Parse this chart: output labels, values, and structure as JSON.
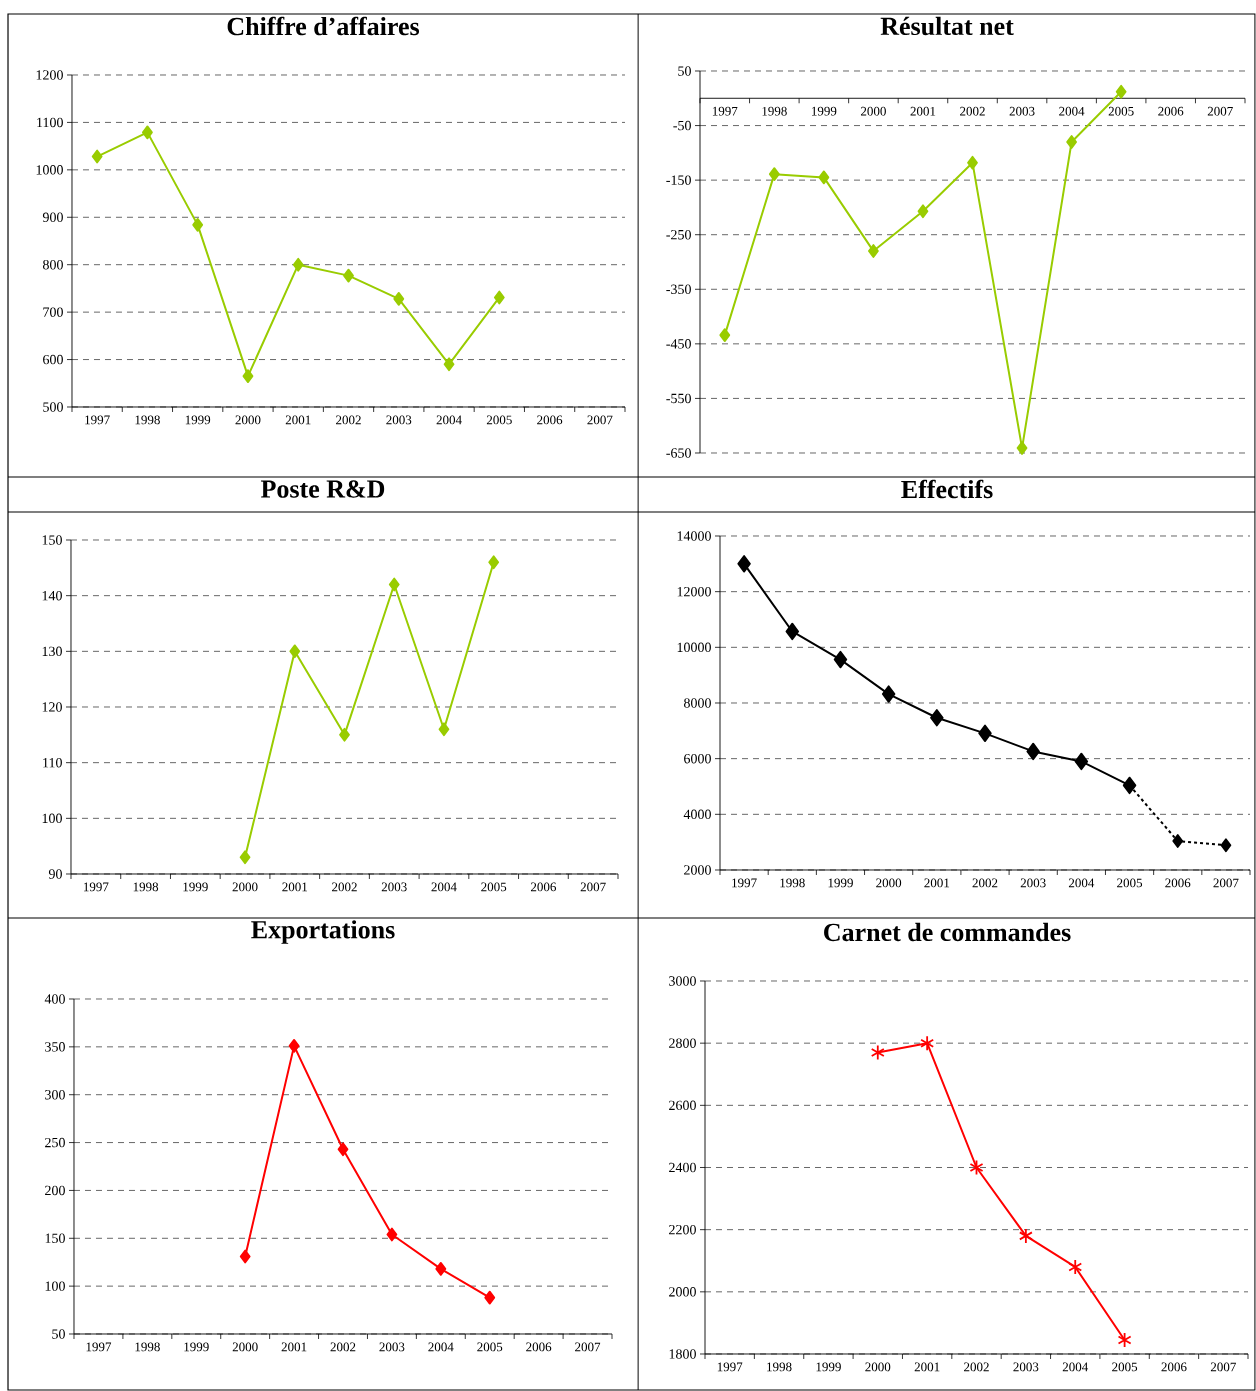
{
  "chart_data": [
    {
      "type": "line",
      "title": "Chiffre d’affaires",
      "categories": [
        "1997",
        "1998",
        "1999",
        "2000",
        "2001",
        "2002",
        "2003",
        "2004",
        "2005",
        "2006",
        "2007"
      ],
      "series": [
        {
          "color": "#99cc00",
          "values": [
            1028,
            1079,
            884,
            565,
            800,
            777,
            728,
            590,
            731,
            null,
            null
          ]
        }
      ],
      "ylim": [
        500,
        1200
      ],
      "yticks": [
        500,
        600,
        700,
        800,
        900,
        1000,
        1100,
        1200
      ],
      "grid": "y",
      "marker": "diamond",
      "line_style": "solid"
    },
    {
      "type": "line",
      "title": "Résultat net",
      "categories": [
        "1997",
        "1998",
        "1999",
        "2000",
        "2001",
        "2002",
        "2003",
        "2004",
        "2005",
        "2006",
        "2007"
      ],
      "series": [
        {
          "color": "#99cc00",
          "values": [
            -434,
            -139,
            -145,
            -280,
            -207,
            -118,
            -641,
            -80,
            12,
            null,
            null
          ]
        }
      ],
      "ylim": [
        -650,
        50
      ],
      "yticks": [
        -650,
        -550,
        -450,
        -350,
        -250,
        -150,
        -50,
        50
      ],
      "grid": "y",
      "marker": "diamond",
      "line_style": "solid"
    },
    {
      "type": "line",
      "title": "Poste R&D",
      "categories": [
        "1997",
        "1998",
        "1999",
        "2000",
        "2001",
        "2002",
        "2003",
        "2004",
        "2005",
        "2006",
        "2007"
      ],
      "series": [
        {
          "color": "#99cc00",
          "values": [
            null,
            null,
            null,
            93,
            130,
            115,
            142,
            116,
            146,
            null,
            null
          ]
        }
      ],
      "ylim": [
        90,
        150
      ],
      "yticks": [
        90,
        100,
        110,
        120,
        130,
        140,
        150
      ],
      "grid": "y",
      "marker": "diamond",
      "line_style": "solid"
    },
    {
      "type": "line",
      "title": "Effectifs",
      "categories": [
        "1997",
        "1998",
        "1999",
        "2000",
        "2001",
        "2002",
        "2003",
        "2004",
        "2005",
        "2006",
        "2007"
      ],
      "series": [
        {
          "color": "#000000",
          "values": [
            13000,
            10570,
            9560,
            8320,
            7470,
            6910,
            6260,
            5900,
            5040,
            null,
            null
          ]
        },
        {
          "color": "#000000",
          "values": [
            null,
            null,
            null,
            null,
            null,
            null,
            null,
            null,
            5040,
            3040,
            2890
          ],
          "line_style": "dashed"
        }
      ],
      "ylim": [
        2000,
        14000
      ],
      "yticks": [
        2000,
        4000,
        6000,
        8000,
        10000,
        12000,
        14000
      ],
      "grid": "y",
      "marker": "diamond",
      "line_style": "solid"
    },
    {
      "type": "line",
      "title": "Exportations",
      "categories": [
        "1997",
        "1998",
        "1999",
        "2000",
        "2001",
        "2002",
        "2003",
        "2004",
        "2005",
        "2006",
        "2007"
      ],
      "series": [
        {
          "color": "#ff0000",
          "values": [
            null,
            null,
            null,
            131,
            351,
            243,
            154,
            118,
            88,
            null,
            null
          ]
        }
      ],
      "ylim": [
        50,
        400
      ],
      "yticks": [
        50,
        100,
        150,
        200,
        250,
        300,
        350,
        400
      ],
      "grid": "y",
      "marker": "diamond",
      "line_style": "solid"
    },
    {
      "type": "line",
      "title": "Carnet de commandes",
      "categories": [
        "1997",
        "1998",
        "1999",
        "2000",
        "2001",
        "2002",
        "2003",
        "2004",
        "2005",
        "2006",
        "2007"
      ],
      "series": [
        {
          "color": "#ff0000",
          "values": [
            null,
            null,
            null,
            2770,
            2800,
            2400,
            2180,
            2080,
            1845,
            null,
            null
          ]
        }
      ],
      "ylim": [
        1800,
        3000
      ],
      "yticks": [
        1800,
        2000,
        2200,
        2400,
        2600,
        2800,
        3000
      ],
      "grid": "y",
      "marker": "cross",
      "line_style": "solid"
    }
  ]
}
